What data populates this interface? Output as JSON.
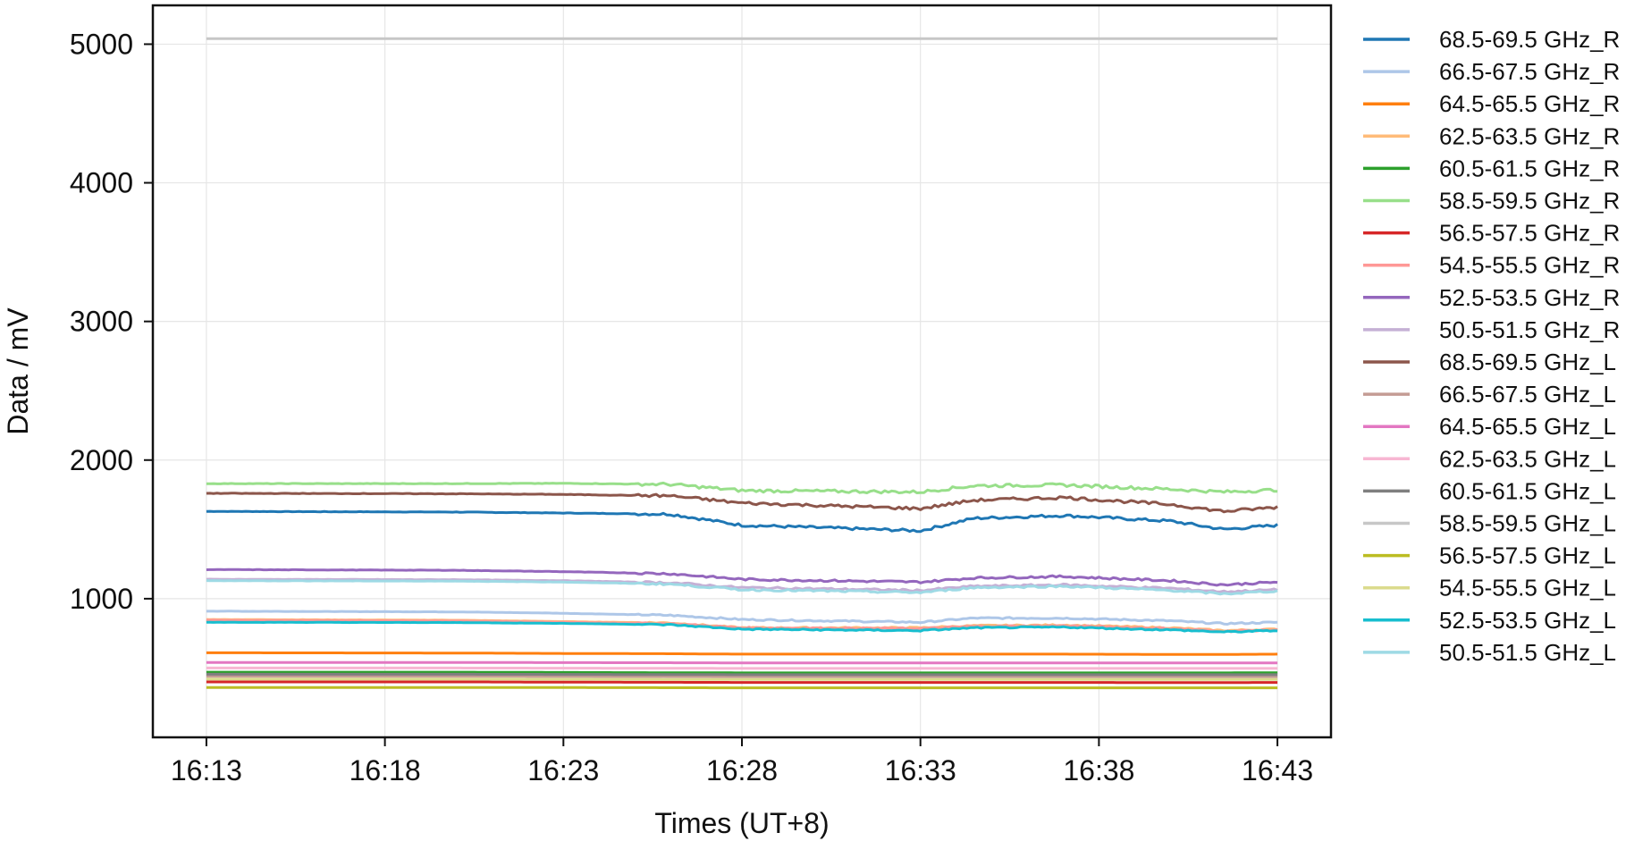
{
  "chart_data": {
    "type": "line",
    "xlabel": "Times (UT+8)",
    "ylabel": "Data / mV",
    "x_ticks": [
      "16:13",
      "16:18",
      "16:23",
      "16:28",
      "16:33",
      "16:38",
      "16:43"
    ],
    "y_ticks": [
      1000,
      2000,
      3000,
      4000,
      5000
    ],
    "xlim_minutes_from_1613": [
      -1.5,
      31.5
    ],
    "ylim": [
      0,
      5280
    ],
    "grid": true,
    "legend_position": "right, outside plot",
    "x_anchor_minutes": [
      0,
      7,
      10,
      13,
      15,
      20,
      21.5,
      24,
      27,
      28.5,
      30
    ],
    "series": [
      {
        "name": "68.5-69.5 GHz_R",
        "color": "#1f77b4",
        "values": [
          1630,
          1625,
          1618,
          1610,
          1530,
          1490,
          1580,
          1600,
          1560,
          1500,
          1530
        ]
      },
      {
        "name": "66.5-67.5 GHz_R",
        "color": "#aec7e8",
        "values": [
          910,
          905,
          895,
          880,
          850,
          830,
          860,
          860,
          840,
          820,
          830
        ]
      },
      {
        "name": "64.5-65.5 GHz_R",
        "color": "#ff7f0e",
        "values": [
          610,
          608,
          605,
          603,
          600,
          600,
          600,
          600,
          598,
          598,
          600
        ]
      },
      {
        "name": "62.5-63.5 GHz_R",
        "color": "#ffbb78",
        "values": [
          850,
          845,
          835,
          825,
          790,
          790,
          805,
          810,
          790,
          770,
          780
        ]
      },
      {
        "name": "60.5-61.5 GHz_R",
        "color": "#2ca02c",
        "values": [
          470,
          470,
          468,
          466,
          465,
          465,
          465,
          465,
          465,
          465,
          466
        ]
      },
      {
        "name": "58.5-59.5 GHz_R",
        "color": "#98df8a",
        "values": [
          1830,
          1830,
          1832,
          1825,
          1780,
          1770,
          1815,
          1820,
          1790,
          1770,
          1785
        ]
      },
      {
        "name": "56.5-57.5 GHz_R",
        "color": "#d62728",
        "values": [
          400,
          400,
          398,
          397,
          396,
          396,
          396,
          396,
          395,
          395,
          396
        ]
      },
      {
        "name": "54.5-55.5 GHz_R",
        "color": "#ff9896",
        "values": [
          845,
          840,
          830,
          820,
          790,
          785,
          800,
          805,
          785,
          765,
          775
        ]
      },
      {
        "name": "52.5-53.5 GHz_R",
        "color": "#9467bd",
        "values": [
          1210,
          1205,
          1195,
          1180,
          1140,
          1120,
          1150,
          1160,
          1130,
          1100,
          1120
        ]
      },
      {
        "name": "50.5-51.5 GHz_R",
        "color": "#c5b0d5",
        "values": [
          1140,
          1137,
          1130,
          1115,
          1080,
          1060,
          1090,
          1100,
          1075,
          1050,
          1065
        ]
      },
      {
        "name": "68.5-69.5 GHz_L",
        "color": "#8c564b",
        "values": [
          1760,
          1757,
          1752,
          1742,
          1690,
          1650,
          1710,
          1730,
          1680,
          1630,
          1660
        ]
      },
      {
        "name": "66.5-67.5 GHz_L",
        "color": "#c49c94",
        "values": [
          440,
          440,
          439,
          438,
          437,
          437,
          437,
          437,
          437,
          437,
          437
        ]
      },
      {
        "name": "64.5-65.5 GHz_L",
        "color": "#e377c2",
        "values": [
          540,
          540,
          539,
          538,
          537,
          537,
          537,
          537,
          537,
          537,
          537
        ]
      },
      {
        "name": "62.5-63.5 GHz_L",
        "color": "#f7b6d2",
        "values": [
          500,
          500,
          499,
          498,
          497,
          497,
          497,
          497,
          497,
          497,
          497
        ]
      },
      {
        "name": "60.5-61.5 GHz_L",
        "color": "#7f7f7f",
        "values": [
          455,
          455,
          454,
          453,
          452,
          452,
          452,
          452,
          452,
          452,
          452
        ]
      },
      {
        "name": "58.5-59.5 GHz_L",
        "color": "#c7c7c7",
        "values": [
          5040,
          5040,
          5040,
          5040,
          5040,
          5040,
          5040,
          5040,
          5040,
          5040,
          5040
        ]
      },
      {
        "name": "56.5-57.5 GHz_L",
        "color": "#bcbd22",
        "values": [
          360,
          360,
          359,
          358,
          357,
          357,
          357,
          357,
          357,
          357,
          357
        ]
      },
      {
        "name": "54.5-55.5 GHz_L",
        "color": "#dbdb8d",
        "values": [
          420,
          420,
          419,
          418,
          417,
          417,
          417,
          417,
          417,
          417,
          417
        ]
      },
      {
        "name": "52.5-53.5 GHz_L",
        "color": "#17becf",
        "values": [
          830,
          828,
          822,
          812,
          780,
          770,
          790,
          795,
          775,
          760,
          770
        ]
      },
      {
        "name": "50.5-51.5 GHz_L",
        "color": "#9edae5",
        "values": [
          1130,
          1127,
          1120,
          1105,
          1065,
          1045,
          1080,
          1090,
          1060,
          1035,
          1055
        ]
      }
    ]
  }
}
